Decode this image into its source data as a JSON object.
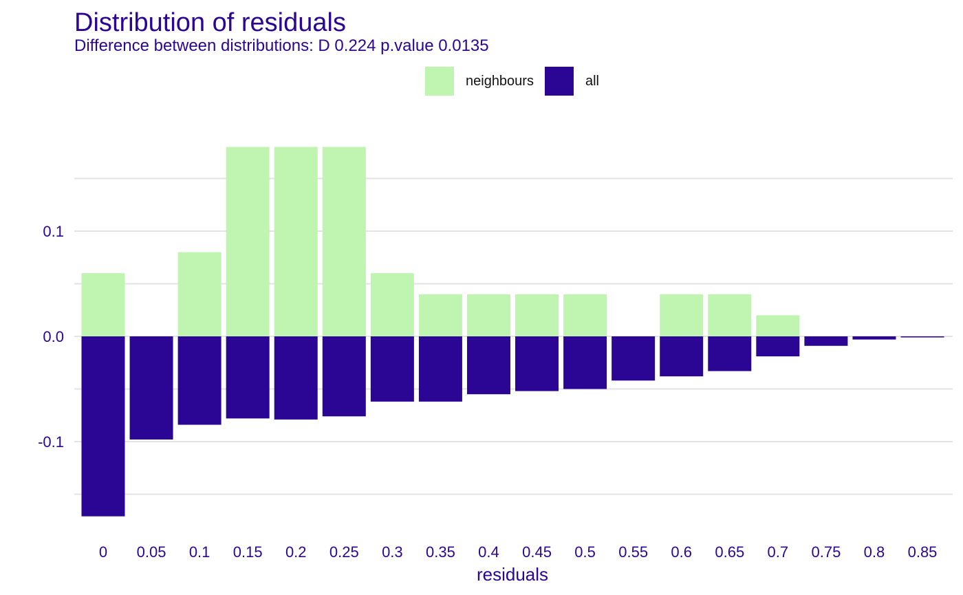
{
  "chart_data": {
    "type": "bar",
    "title": "Distribution of residuals",
    "subtitle": "Difference between distributions: D 0.224 p.value 0.0135",
    "xlabel": "residuals",
    "ylabel": "",
    "categories": [
      "0",
      "0.05",
      "0.1",
      "0.15",
      "0.2",
      "0.25",
      "0.3",
      "0.35",
      "0.4",
      "0.45",
      "0.5",
      "0.55",
      "0.6",
      "0.65",
      "0.7",
      "0.75",
      "0.8",
      "0.85"
    ],
    "series": [
      {
        "name": "neighbours",
        "color": "#bff5b0",
        "values": [
          0.06,
          0.0,
          0.08,
          0.18,
          0.18,
          0.18,
          0.06,
          0.04,
          0.04,
          0.04,
          0.04,
          0.0,
          0.04,
          0.04,
          0.02,
          0.0,
          0.0,
          0.0
        ]
      },
      {
        "name": "all",
        "color": "#2b0593",
        "values": [
          -0.171,
          -0.098,
          -0.084,
          -0.078,
          -0.079,
          -0.076,
          -0.062,
          -0.062,
          -0.055,
          -0.052,
          -0.05,
          -0.042,
          -0.038,
          -0.033,
          -0.019,
          -0.009,
          -0.003,
          -0.001
        ]
      }
    ],
    "yticks": [
      {
        "value": 0.1,
        "label": "0.1"
      },
      {
        "value": 0.0,
        "label": "0.0"
      },
      {
        "value": -0.1,
        "label": "-0.1"
      }
    ],
    "ylim": [
      -0.18,
      0.18
    ],
    "grid": true,
    "legend_position": "top-center"
  }
}
